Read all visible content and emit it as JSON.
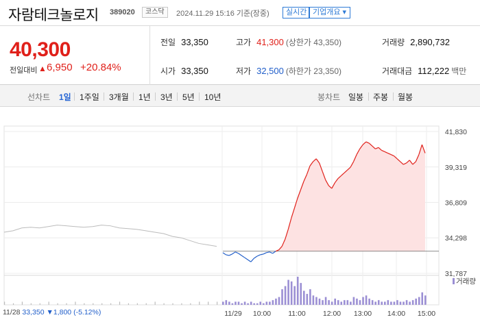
{
  "header": {
    "stock_name": "자람테크놀로지",
    "stock_code": "389020",
    "market": "코스닥",
    "datetime": "2024.11.29 15:16 기준(장중)",
    "realtime_button": "실시간",
    "company_button": "기업개요 ▾"
  },
  "price": {
    "current": "40,300",
    "change_label": "전일대비",
    "change_arrow": "▲",
    "change_value": "6,950",
    "change_pct": "+20.84%"
  },
  "stats": {
    "prev_close_label": "전일",
    "prev_close": "33,350",
    "high_label": "고가",
    "high": "41,300",
    "upper_limit": "(상한가 43,350)",
    "volume_label": "거래량",
    "volume": "2,890,732",
    "open_label": "시가",
    "open": "33,350",
    "low_label": "저가",
    "low": "32,500",
    "lower_limit": "(하한가 23,350)",
    "value_label": "거래대금",
    "value": "112,222",
    "value_unit": "백만"
  },
  "tabs": {
    "line_chart_label": "선차트",
    "periods": [
      "1일",
      "1주일",
      "3개월",
      "1년",
      "3년",
      "5년",
      "10년"
    ],
    "candle_label": "봉차트",
    "candles": [
      "일봉",
      "주봉",
      "월봉"
    ]
  },
  "footer": {
    "date": "11/28",
    "price": "33,350",
    "arrow": "▼",
    "change": "1,800",
    "pct": "(-5.12%)"
  },
  "colors": {
    "up": "#e0201a",
    "down": "#1f5dc9",
    "area": "#fde2e2",
    "volume": "#9b8fd4",
    "prev_day": "#bbbbbb"
  },
  "chart_data": {
    "type": "line",
    "y_ticks": [
      "41,830",
      "39,319",
      "36,809",
      "34,298",
      "31,787"
    ],
    "y_tick_values": [
      41830,
      39319,
      36809,
      34298,
      31787
    ],
    "ylim": [
      31787,
      41830
    ],
    "x_labels": [
      "11/29",
      "10:00",
      "11:00",
      "12:00",
      "13:00",
      "14:00",
      "15:00"
    ],
    "legend_volume": "거래량",
    "baseline": 33350,
    "prev_day": {
      "date": "11/28",
      "price": [
        34700,
        34800,
        35000,
        35050,
        35000,
        35100,
        35200,
        35150,
        35100,
        35050,
        35100,
        35200,
        35150,
        35000,
        34950,
        34900,
        34800,
        34700,
        34600,
        34400,
        34300,
        34100,
        33900,
        33800,
        33700
      ]
    },
    "today": {
      "price": [
        33250,
        33100,
        33050,
        33150,
        33300,
        33200,
        33050,
        32900,
        32750,
        32600,
        32850,
        33000,
        33100,
        33150,
        33250,
        33300,
        33200,
        33350,
        33450,
        33700,
        34200,
        34900,
        35700,
        36400,
        37100,
        37700,
        38300,
        38800,
        39400,
        39700,
        39900,
        39600,
        39000,
        38400,
        38000,
        37800,
        38200,
        38500,
        38700,
        38900,
        39100,
        39300,
        39700,
        40200,
        40600,
        40900,
        41100,
        41000,
        40800,
        40600,
        40700,
        40500,
        40400,
        40300,
        40200,
        40100,
        39900,
        39700,
        39500,
        39600,
        39800,
        39500,
        39700,
        40200,
        40900,
        40300
      ]
    },
    "volume_prev": [
      2,
      1,
      2,
      1,
      1,
      2,
      1,
      1,
      2,
      1,
      1,
      1,
      1,
      2,
      1,
      1,
      1,
      2,
      1,
      1,
      1,
      1,
      2,
      2,
      2
    ],
    "volume_today": [
      2,
      3,
      2,
      1,
      2,
      2,
      1,
      2,
      1,
      2,
      1,
      1,
      2,
      1,
      2,
      2,
      3,
      4,
      5,
      10,
      12,
      16,
      15,
      12,
      18,
      14,
      9,
      7,
      10,
      6,
      5,
      4,
      3,
      5,
      3,
      2,
      4,
      3,
      2,
      3,
      3,
      2,
      5,
      4,
      3,
      5,
      6,
      4,
      3,
      2,
      3,
      2,
      2,
      3,
      2,
      2,
      3,
      2,
      2,
      3,
      2,
      3,
      4,
      5,
      8,
      6
    ]
  }
}
